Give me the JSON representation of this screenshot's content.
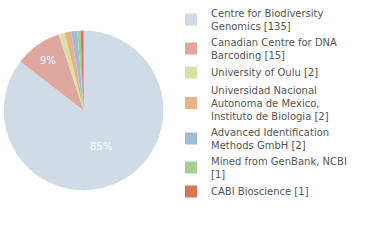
{
  "chart_data": {
    "type": "pie",
    "categories": [
      "Centre for Biodiversity Genomics [135]",
      "Canadian Centre for DNA Barcoding [15]",
      "University of Oulu [2]",
      "Universidad Nacional Autonoma de Mexico, Instituto de Biologia [2]",
      "Advanced Identification Methods GmbH [2]",
      "Mined from GenBank, NCBI [1]",
      "CABI Bioscience [1]"
    ],
    "values": [
      85.44,
      9.49,
      1.27,
      1.27,
      1.27,
      0.63,
      0.63
    ],
    "value_labels": [
      "85%",
      "9%",
      null,
      null,
      null,
      null,
      null
    ],
    "colors": [
      "#cfdbe7",
      "#dfa89f",
      "#d9e0a6",
      "#e9b184",
      "#a3bbd8",
      "#a9cb94",
      "#d9735f"
    ],
    "data_labels": true,
    "legend": "right"
  }
}
